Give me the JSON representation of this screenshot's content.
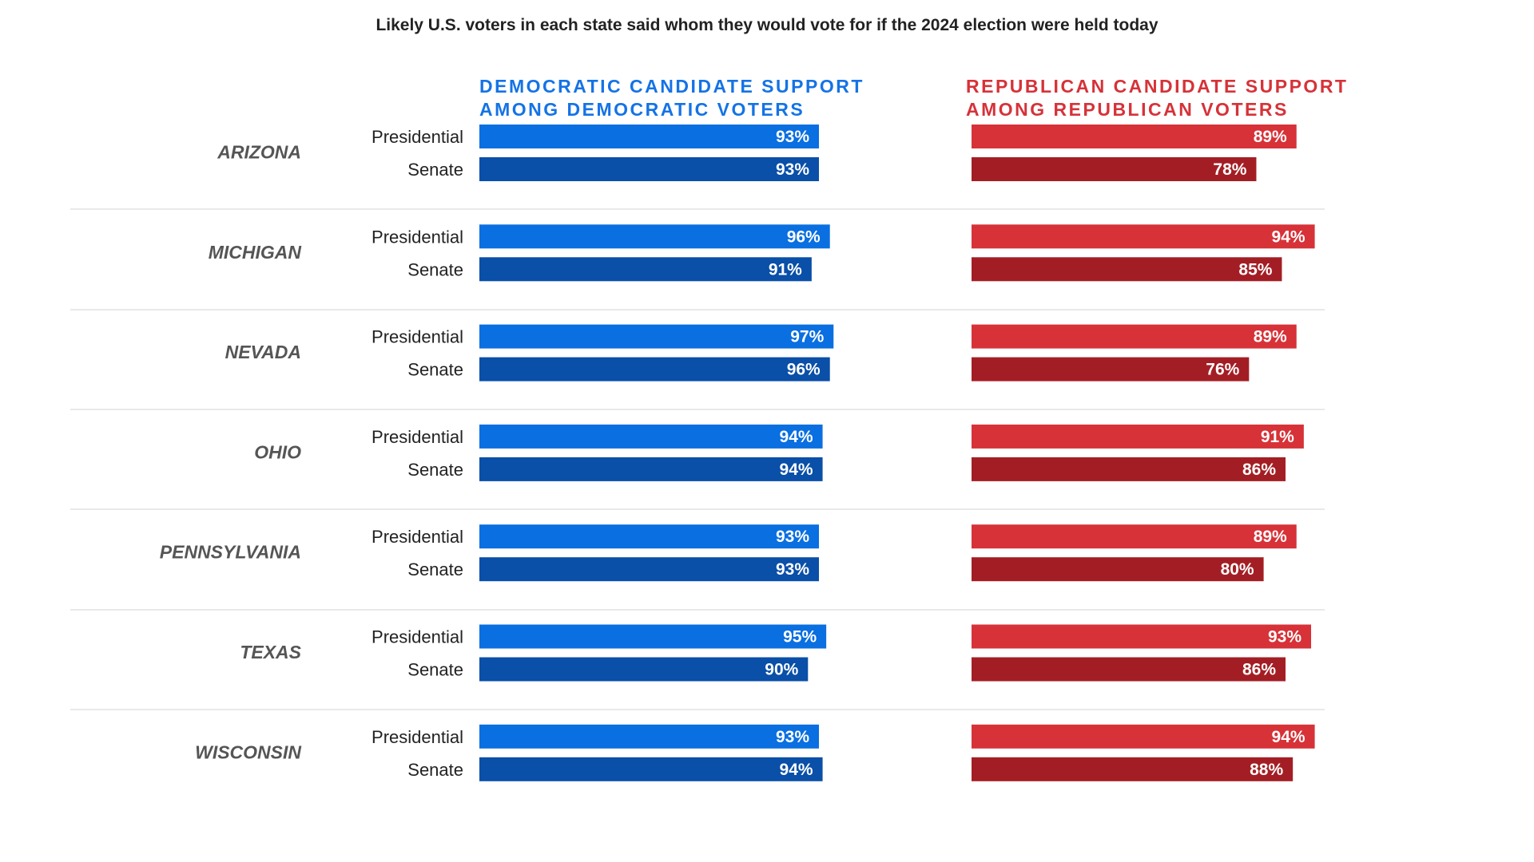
{
  "title": "Likely U.S. voters in each state said whom they would vote for if the 2024 election were held today",
  "headers": {
    "dem_line1": "DEMOCRATIC CANDIDATE SUPPORT",
    "dem_line2": "AMONG DEMOCRATIC VOTERS",
    "rep_line1": "REPUBLICAN CANDIDATE SUPPORT",
    "rep_line2": "AMONG REPUBLICAN VOTERS"
  },
  "colors": {
    "dem_presidential": "#0a6fe0",
    "dem_senate": "#0a4fa8",
    "rep_presidential": "#d63238",
    "rep_senate": "#a31e24",
    "dem_header": "#1473e6",
    "rep_header": "#d63238",
    "divider": "#e2e2e2"
  },
  "chart_data": {
    "type": "bar",
    "orientation": "horizontal",
    "title": "Likely U.S. voters in each state said whom they would vote for if the 2024 election were held today",
    "row_labels": [
      "Presidential",
      "Senate"
    ],
    "value_suffix": "%",
    "states": [
      {
        "name": "ARIZONA",
        "dem": {
          "presidential": 93,
          "senate": 93
        },
        "rep": {
          "presidential": 89,
          "senate": 78
        }
      },
      {
        "name": "MICHIGAN",
        "dem": {
          "presidential": 96,
          "senate": 91
        },
        "rep": {
          "presidential": 94,
          "senate": 85
        }
      },
      {
        "name": "NEVADA",
        "dem": {
          "presidential": 97,
          "senate": 96
        },
        "rep": {
          "presidential": 89,
          "senate": 76
        }
      },
      {
        "name": "OHIO",
        "dem": {
          "presidential": 94,
          "senate": 94
        },
        "rep": {
          "presidential": 91,
          "senate": 86
        }
      },
      {
        "name": "PENNSYLVANIA",
        "dem": {
          "presidential": 93,
          "senate": 93
        },
        "rep": {
          "presidential": 89,
          "senate": 80
        }
      },
      {
        "name": "TEXAS",
        "dem": {
          "presidential": 95,
          "senate": 90
        },
        "rep": {
          "presidential": 93,
          "senate": 86
        }
      },
      {
        "name": "WISCONSIN",
        "dem": {
          "presidential": 93,
          "senate": 94
        },
        "rep": {
          "presidential": 94,
          "senate": 88
        }
      }
    ]
  }
}
